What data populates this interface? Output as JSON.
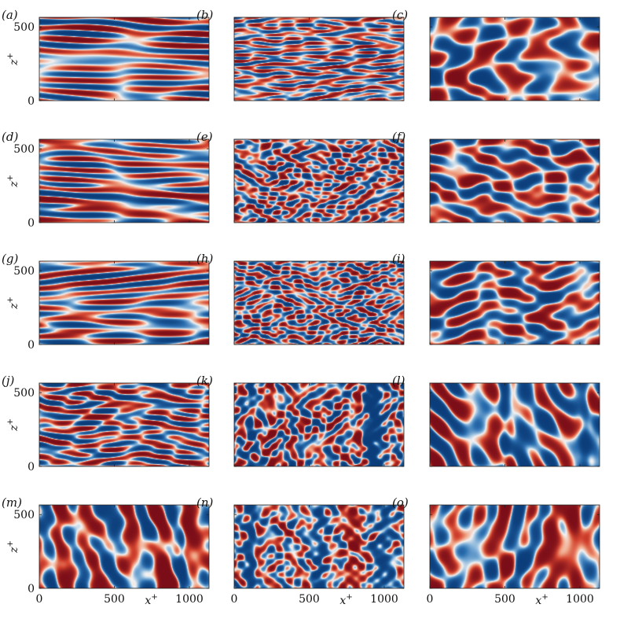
{
  "chart_data": {
    "type": "heatmap",
    "colormap": [
      "#0b3d7a",
      "#2c6fb0",
      "#7fb0d8",
      "#f3f3f3",
      "#f0a384",
      "#d3432f",
      "#7a0d18"
    ],
    "x_axis_label": "x",
    "x_axis_sup": "+",
    "y_axis_label": "z",
    "y_axis_sup": "+",
    "xlim": [
      0,
      1131
    ],
    "ylim": [
      0,
      565
    ],
    "x_ticks": [
      0,
      500,
      1000
    ],
    "y_ticks": [
      0,
      500
    ],
    "x_tick_labels": [
      "0",
      "500",
      "1000"
    ],
    "y_tick_labels": [
      "0",
      "500"
    ],
    "panels": [
      {
        "label": "(a)",
        "pattern": "streaks",
        "row": 0,
        "col": 0
      },
      {
        "label": "(b)",
        "pattern": "fine-streaks",
        "row": 0,
        "col": 1
      },
      {
        "label": "(c)",
        "pattern": "blobs",
        "row": 0,
        "col": 2
      },
      {
        "label": "(d)",
        "pattern": "streaks",
        "row": 1,
        "col": 0
      },
      {
        "label": "(e)",
        "pattern": "fine-mixed",
        "row": 1,
        "col": 1
      },
      {
        "label": "(f)",
        "pattern": "blobs",
        "row": 1,
        "col": 2
      },
      {
        "label": "(g)",
        "pattern": "streaks",
        "row": 2,
        "col": 0
      },
      {
        "label": "(h)",
        "pattern": "fine-mixed",
        "row": 2,
        "col": 1
      },
      {
        "label": "(i)",
        "pattern": "blobs",
        "row": 2,
        "col": 2
      },
      {
        "label": "(j)",
        "pattern": "mixed-streaks",
        "row": 3,
        "col": 0
      },
      {
        "label": "(k)",
        "pattern": "spanwise-fine",
        "row": 3,
        "col": 1
      },
      {
        "label": "(l)",
        "pattern": "spanwise",
        "row": 3,
        "col": 2
      },
      {
        "label": "(m)",
        "pattern": "spanwise",
        "row": 4,
        "col": 0
      },
      {
        "label": "(n)",
        "pattern": "spanwise-fine",
        "row": 4,
        "col": 1
      },
      {
        "label": "(o)",
        "pattern": "spanwise",
        "row": 4,
        "col": 2
      }
    ]
  }
}
